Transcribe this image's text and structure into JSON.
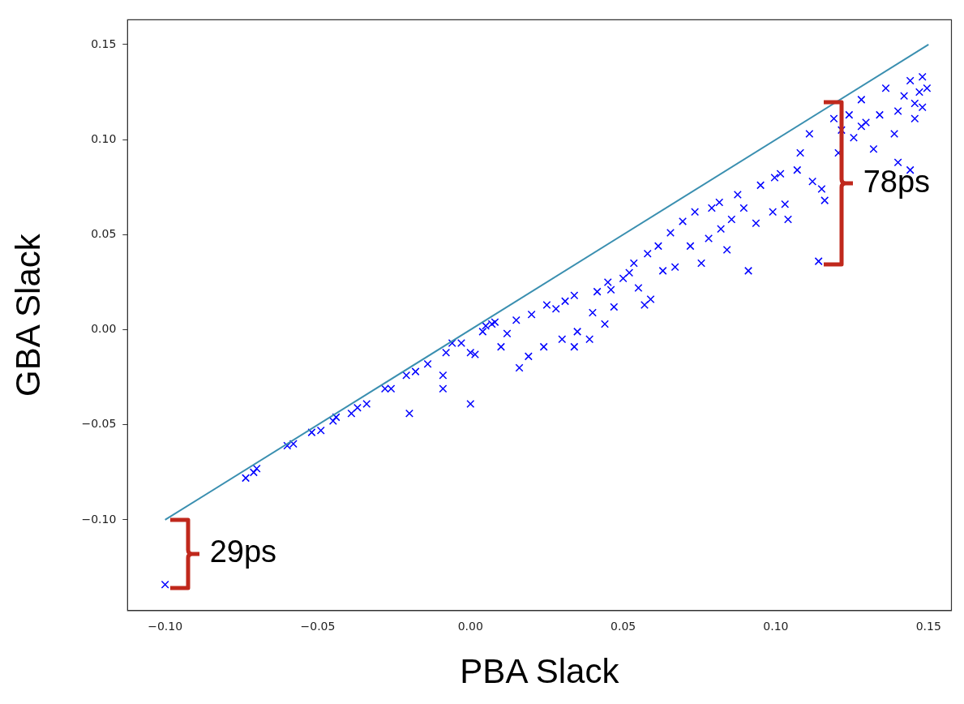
{
  "chart_data": {
    "type": "scatter",
    "xlabel": "PBA Slack",
    "ylabel": "GBA Slack",
    "xlim": [
      -0.1123,
      0.1575
    ],
    "ylim": [
      -0.1477,
      0.163
    ],
    "xticks": [
      {
        "value": -0.1,
        "label": "−0.10"
      },
      {
        "value": -0.05,
        "label": "−0.05"
      },
      {
        "value": 0,
        "label": "0.00"
      },
      {
        "value": 0.05,
        "label": "0.05"
      },
      {
        "value": 0.1,
        "label": "0.10"
      },
      {
        "value": 0.15,
        "label": "0.15"
      }
    ],
    "yticks": [
      {
        "value": -0.1,
        "label": "−0.10"
      },
      {
        "value": -0.05,
        "label": "−0.05"
      },
      {
        "value": 0,
        "label": "0.00"
      },
      {
        "value": 0.05,
        "label": "0.05"
      },
      {
        "value": 0.1,
        "label": "0.10"
      },
      {
        "value": 0.15,
        "label": "0.15"
      }
    ],
    "grid": false,
    "legend": false,
    "series": [
      {
        "type": "line",
        "color": "#3a8fb0",
        "marker": "none",
        "line_style": "solid",
        "x": [
          -0.1,
          0.15
        ],
        "values": [
          -0.1,
          0.15
        ]
      },
      {
        "type": "scatter",
        "color": "#0000ff",
        "marker": "cross",
        "x": [
          -0.1,
          -0.0736,
          -0.071,
          -0.07,
          -0.06,
          -0.058,
          -0.052,
          -0.049,
          -0.045,
          -0.044,
          -0.039,
          -0.037,
          -0.034,
          -0.028,
          -0.026,
          -0.021,
          -0.018,
          -0.02,
          -0.014,
          -0.008,
          -0.009,
          -0.009,
          -0.006,
          -0.003,
          0.0,
          0.0,
          0.0015,
          0.005,
          0.004,
          0.007,
          0.008,
          0.01,
          0.012,
          0.015,
          0.016,
          0.019,
          0.02,
          0.024,
          0.025,
          0.028,
          0.03,
          0.031,
          0.034,
          0.034,
          0.035,
          0.039,
          0.04,
          0.0415,
          0.044,
          0.045,
          0.046,
          0.047,
          0.05,
          0.052,
          0.0535,
          0.055,
          0.057,
          0.059,
          0.058,
          0.0615,
          0.063,
          0.0655,
          0.067,
          0.0695,
          0.072,
          0.0735,
          0.0756,
          0.078,
          0.079,
          0.0815,
          0.082,
          0.084,
          0.0855,
          0.0875,
          0.0895,
          0.091,
          0.0935,
          0.095,
          0.099,
          0.0996,
          0.1015,
          0.103,
          0.104,
          0.107,
          0.108,
          0.111,
          0.112,
          0.115,
          0.116,
          0.114,
          0.119,
          0.1205,
          0.1215,
          0.124,
          0.1255,
          0.128,
          0.1295,
          0.132,
          0.134,
          0.136,
          0.1388,
          0.14,
          0.142,
          0.144,
          0.1455,
          0.147,
          0.148,
          0.1495,
          0.148,
          0.14,
          0.144,
          0.1455,
          0.128
        ],
        "values": [
          -0.134,
          -0.078,
          -0.075,
          -0.073,
          -0.061,
          -0.06,
          -0.054,
          -0.053,
          -0.048,
          -0.046,
          -0.044,
          -0.041,
          -0.039,
          -0.031,
          -0.031,
          -0.024,
          -0.022,
          -0.044,
          -0.018,
          -0.012,
          -0.024,
          -0.031,
          -0.007,
          -0.007,
          -0.039,
          -0.012,
          -0.013,
          0.002,
          -0.001,
          0.003,
          0.004,
          -0.009,
          -0.002,
          0.005,
          -0.02,
          -0.014,
          0.008,
          -0.009,
          0.013,
          0.011,
          -0.005,
          0.015,
          0.018,
          -0.009,
          -0.001,
          -0.005,
          0.009,
          0.02,
          0.003,
          0.025,
          0.021,
          0.012,
          0.027,
          0.03,
          0.035,
          0.022,
          0.013,
          0.016,
          0.04,
          0.044,
          0.031,
          0.051,
          0.033,
          0.057,
          0.044,
          0.062,
          0.035,
          0.048,
          0.064,
          0.067,
          0.053,
          0.042,
          0.058,
          0.071,
          0.064,
          0.031,
          0.056,
          0.076,
          0.062,
          0.08,
          0.082,
          0.066,
          0.058,
          0.084,
          0.093,
          0.103,
          0.078,
          0.074,
          0.068,
          0.036,
          0.111,
          0.093,
          0.105,
          0.113,
          0.101,
          0.121,
          0.109,
          0.095,
          0.113,
          0.127,
          0.103,
          0.115,
          0.123,
          0.131,
          0.119,
          0.125,
          0.133,
          0.127,
          0.117,
          0.088,
          0.084,
          0.111,
          0.107
        ]
      }
    ],
    "annotations": [
      {
        "text": "29ps",
        "x": -0.1,
        "y": -0.134
      },
      {
        "text": "78ps",
        "x": 0.114,
        "y": 0.036
      }
    ]
  }
}
